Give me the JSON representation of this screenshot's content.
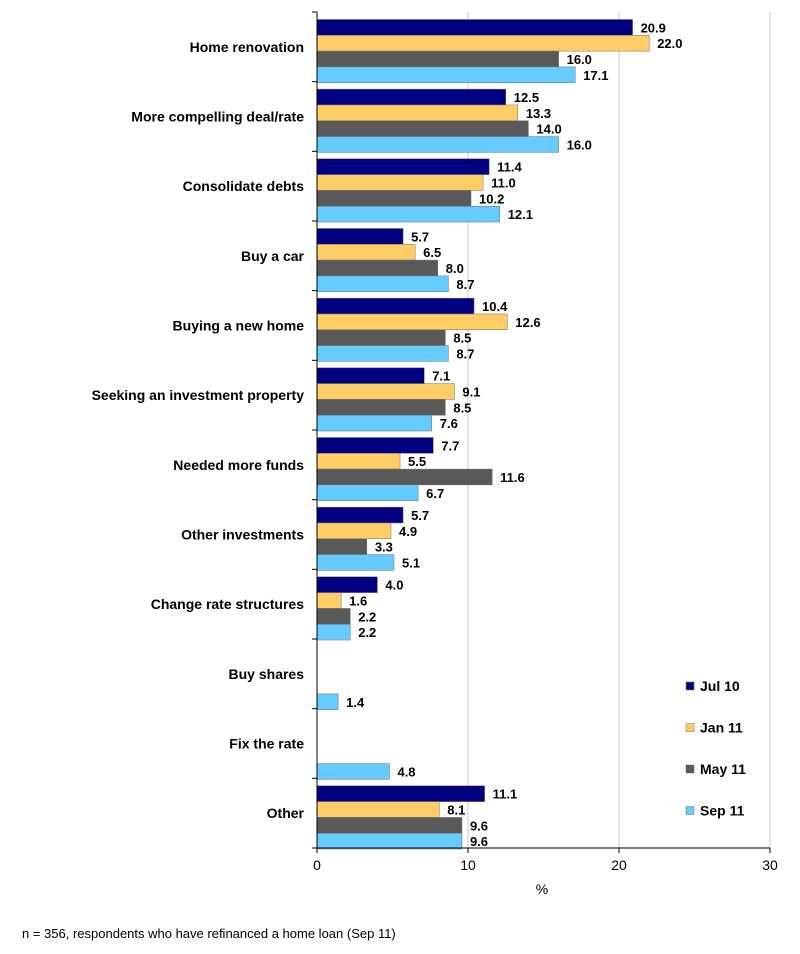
{
  "chart_data": {
    "type": "bar",
    "orientation": "horizontal",
    "categories": [
      "Home renovation",
      "More compelling deal/rate",
      "Consolidate debts",
      "Buy a car",
      "Buying a new home",
      "Seeking an investment property",
      "Needed more funds",
      "Other investments",
      "Change rate structures",
      "Buy shares",
      "Fix the rate",
      "Other"
    ],
    "series": [
      {
        "name": "Jul 10",
        "color": "#000080",
        "values": [
          20.9,
          12.5,
          11.4,
          5.7,
          10.4,
          7.1,
          7.7,
          5.7,
          4.0,
          null,
          null,
          11.1
        ]
      },
      {
        "name": "Jan 11",
        "color": "#FFCC66",
        "values": [
          22.0,
          13.3,
          11.0,
          6.5,
          12.6,
          9.1,
          5.5,
          4.9,
          1.6,
          null,
          null,
          8.1
        ]
      },
      {
        "name": "May 11",
        "color": "#595959",
        "values": [
          16.0,
          14.0,
          10.2,
          8.0,
          8.5,
          8.5,
          11.6,
          3.3,
          2.2,
          null,
          null,
          9.6
        ]
      },
      {
        "name": "Sep 11",
        "color": "#66CCFF",
        "values": [
          17.1,
          16.0,
          12.1,
          8.7,
          8.7,
          7.6,
          6.7,
          5.1,
          2.2,
          1.4,
          4.8,
          9.6
        ]
      }
    ],
    "value_labels": [
      [
        "20.9",
        "12.5",
        "11.4",
        "5.7",
        "10.4",
        "7.1",
        "7.7",
        "5.7",
        "4.0",
        null,
        null,
        "11.1"
      ],
      [
        "22.0",
        "13.3",
        "11.0",
        "6.5",
        "12.6",
        "9.1",
        "5.5",
        "4.9",
        "1.6",
        null,
        null,
        "8.1"
      ],
      [
        "16.0",
        "14.0",
        "10.2",
        "8.0",
        "8.5",
        "8.5",
        "11.6",
        "3.3",
        "2.2",
        null,
        null,
        "9.6"
      ],
      [
        "17.1",
        "16.0",
        "12.1",
        "8.7",
        "8.7",
        "7.6",
        "6.7",
        "5.1",
        "2.2",
        "1.4",
        "4.8",
        "9.6"
      ]
    ],
    "xlabel": "%",
    "xlim": [
      0,
      30
    ],
    "xticks": [
      "0",
      "10",
      "20",
      "30"
    ],
    "grid": true,
    "legend_position": "bottom-right"
  },
  "footnote": "n = 356, respondents who have refinanced a home loan (Sep 11)"
}
